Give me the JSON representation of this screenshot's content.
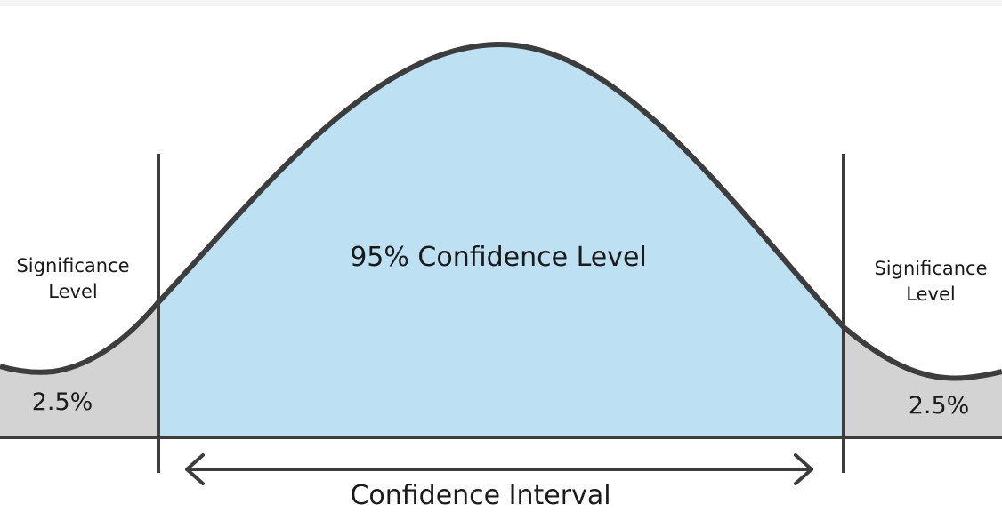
{
  "diagram": {
    "center_label": "95% Confidence Level",
    "left_tail": {
      "label_line1": "Significance",
      "label_line2": "Level",
      "percent": "2.5%"
    },
    "right_tail": {
      "label_line1": "Significance",
      "label_line2": "Level",
      "percent": "2.5%"
    },
    "interval_label": "Confidence Interval",
    "colors": {
      "center_fill": "#bde0f2",
      "tail_fill": "#d3d3d3",
      "line": "#3d3d3d",
      "text": "#1a1a1a"
    }
  }
}
